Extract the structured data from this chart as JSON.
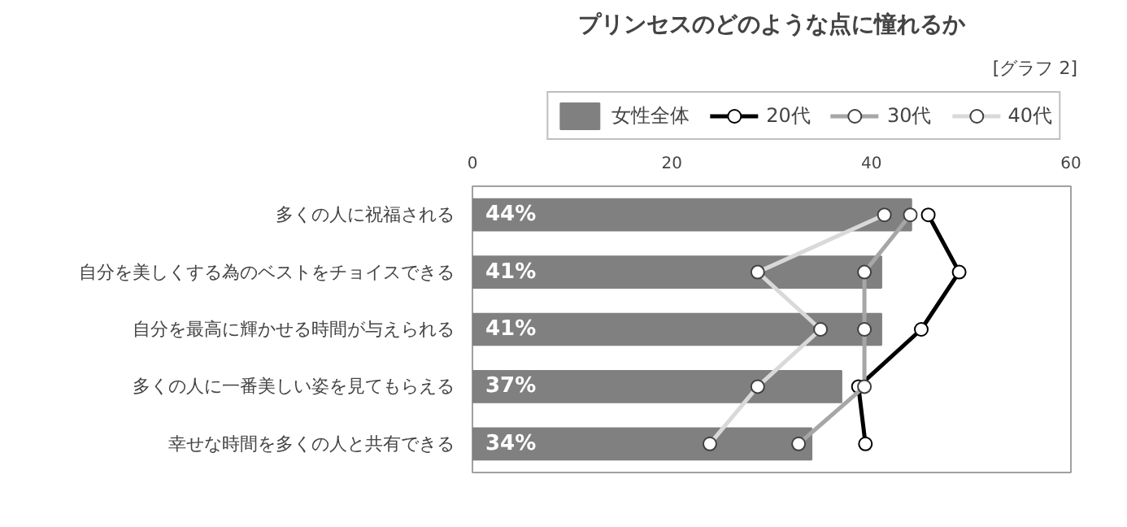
{
  "chart_data": {
    "type": "bar",
    "orientation": "horizontal",
    "title": "プリンセスのどのような点に憧れるか",
    "annotations": [
      "[グラフ 2]"
    ],
    "categories": [
      "多くの人に祝福される",
      "自分を美しくする為のベストをチョイスできる",
      "自分を最高に輝かせる時間が与えられる",
      "多くの人に一番美しい姿を見てもらえる",
      "幸せな時間を多くの人と共有できる"
    ],
    "series": [
      {
        "name": "女性全体",
        "color": "#808080",
        "values": [
          44,
          41,
          41,
          37,
          34
        ],
        "value_labels": [
          "44%",
          "41%",
          "41%",
          "37%",
          "34%"
        ]
      },
      {
        "name": "20代",
        "type": "line",
        "color": "#000000",
        "values": [
          45.7,
          48.8,
          45.0,
          38.7,
          39.4
        ]
      },
      {
        "name": "30代",
        "type": "line",
        "color": "#a6a6a6",
        "values": [
          43.9,
          39.3,
          39.3,
          39.3,
          32.7
        ]
      },
      {
        "name": "40代",
        "type": "line",
        "color": "#d9d9d9",
        "values": [
          41.3,
          28.6,
          34.9,
          28.6,
          23.8
        ]
      }
    ],
    "xlim": [
      0,
      60
    ],
    "xticks": [
      0,
      20,
      40,
      60
    ],
    "grid": false,
    "legend": "top right",
    "marker": "circle"
  }
}
